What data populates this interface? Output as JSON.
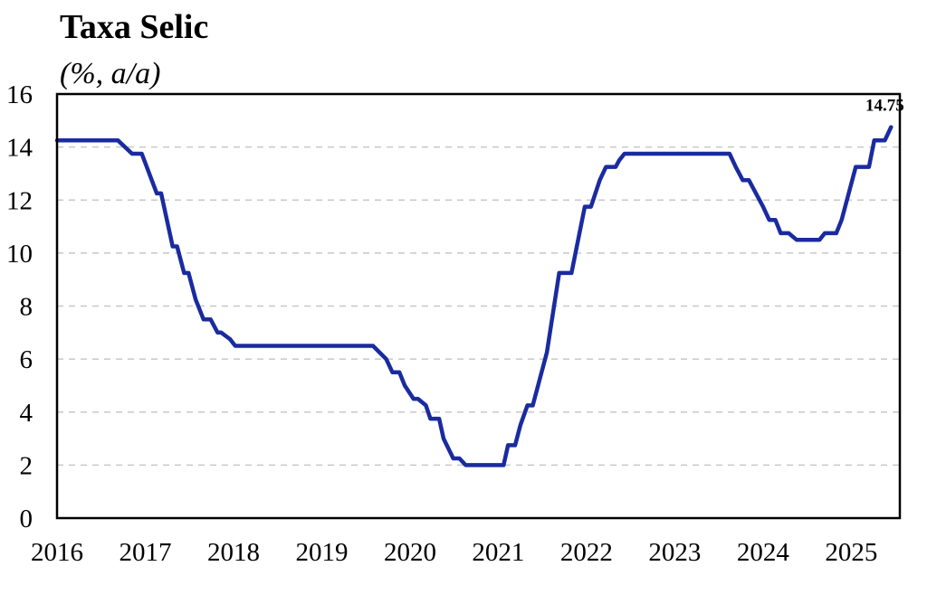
{
  "chart_data": {
    "type": "line",
    "title": "Taxa Selic",
    "subtitle": "(%, a/a)",
    "xlabel": "",
    "ylabel": "",
    "ylim": [
      0,
      16
    ],
    "xlim": [
      2016,
      2025.55
    ],
    "yticks": [
      "0",
      "2",
      "4",
      "6",
      "8",
      "10",
      "12",
      "14",
      "16"
    ],
    "xticks": [
      "2016",
      "2017",
      "2018",
      "2019",
      "2020",
      "2021",
      "2022",
      "2023",
      "2024",
      "2025"
    ],
    "grid": "horizontal dashed",
    "legend": "none",
    "line_color": "#1a2ba0",
    "annotation": {
      "text": "14.75",
      "x": 2025.4,
      "y": 14.75
    },
    "series": [
      {
        "x": [
          2016.0,
          2016.69,
          2016.85,
          2016.96,
          2017.13,
          2017.18,
          2017.31,
          2017.36,
          2017.44,
          2017.49,
          2017.57,
          2017.66,
          2017.74,
          2017.82,
          2017.86,
          2017.96,
          2018.02,
          2018.18,
          2019.58,
          2019.73,
          2019.8,
          2019.88,
          2019.94,
          2020.04,
          2020.09,
          2020.18,
          2020.23,
          2020.33,
          2020.38,
          2020.49,
          2020.56,
          2020.63,
          2021.0,
          2021.06,
          2021.11,
          2021.19,
          2021.25,
          2021.33,
          2021.39,
          2021.47,
          2021.55,
          2021.62,
          2021.69,
          2021.76,
          2021.83,
          2021.92,
          2021.98,
          2022.05,
          2022.15,
          2022.22,
          2022.33,
          2022.37,
          2022.43,
          2022.48,
          2022.6,
          2022.63,
          2023.62,
          2023.69,
          2023.77,
          2023.84,
          2023.92,
          2024.0,
          2024.07,
          2024.14,
          2024.2,
          2024.29,
          2024.38,
          2024.64,
          2024.7,
          2024.76,
          2024.83,
          2024.89,
          2024.97,
          2025.05,
          2025.13,
          2025.2,
          2025.26,
          2025.32,
          2025.38,
          2025.45
        ],
        "y": [
          14.25,
          14.25,
          13.75,
          13.75,
          12.25,
          12.25,
          10.25,
          10.25,
          9.25,
          9.25,
          8.25,
          7.5,
          7.5,
          7.0,
          7.0,
          6.75,
          6.5,
          6.5,
          6.5,
          6.0,
          5.5,
          5.5,
          5.0,
          4.5,
          4.5,
          4.25,
          3.75,
          3.75,
          3.0,
          2.25,
          2.25,
          2.0,
          2.0,
          2.0,
          2.75,
          2.75,
          3.5,
          4.25,
          4.25,
          5.25,
          6.25,
          7.75,
          9.25,
          9.25,
          9.25,
          10.75,
          11.75,
          11.75,
          12.75,
          13.25,
          13.25,
          13.5,
          13.75,
          13.75,
          13.75,
          13.75,
          13.75,
          13.25,
          12.75,
          12.75,
          12.25,
          11.75,
          11.25,
          11.25,
          10.75,
          10.75,
          10.5,
          10.5,
          10.75,
          10.75,
          10.75,
          11.25,
          12.25,
          13.25,
          13.25,
          13.25,
          14.25,
          14.25,
          14.25,
          14.75
        ]
      }
    ]
  }
}
